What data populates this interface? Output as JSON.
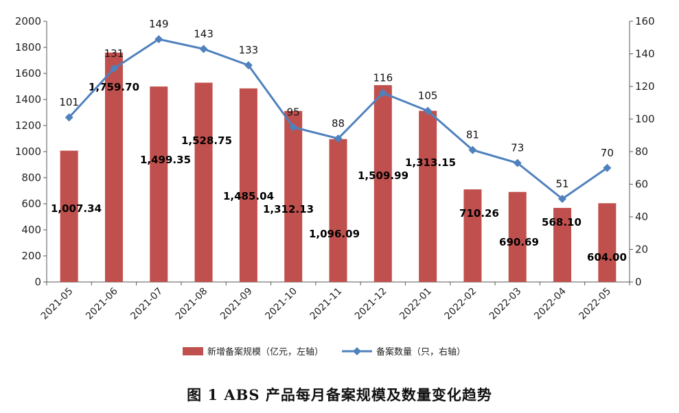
{
  "caption": "图 1  ABS 产品每月备案规模及数量变化趋势",
  "chart_data": {
    "type": "bar",
    "categories": [
      "2021-05",
      "2021-06",
      "2021-07",
      "2021-08",
      "2021-09",
      "2021-10",
      "2021-11",
      "2021-12",
      "2022-01",
      "2022-02",
      "2022-03",
      "2022-04",
      "2022-05"
    ],
    "series": [
      {
        "name": "新增备案规模（亿元，左轴）",
        "type": "bar",
        "axis": "left",
        "color": "#c0504d",
        "values": [
          1007.34,
          1759.7,
          1499.35,
          1528.75,
          1485.04,
          1312.13,
          1096.09,
          1509.99,
          1313.15,
          710.26,
          690.69,
          568.1,
          604.0
        ],
        "labels": [
          "1,007.34",
          "1,759.70",
          "1,499.35",
          "1,528.75",
          "1,485.04",
          "1,312.13",
          "1,096.09",
          "1,509.99",
          "1,313.15",
          "710.26",
          "690.69",
          "568.10",
          "604.00"
        ]
      },
      {
        "name": "备案数量（只，右轴）",
        "type": "line",
        "axis": "right",
        "color": "#4f81bd",
        "values": [
          101,
          131,
          149,
          143,
          133,
          95,
          88,
          116,
          105,
          81,
          73,
          51,
          70
        ],
        "labels": [
          "101",
          "131",
          "149",
          "143",
          "133",
          "95",
          "88",
          "116",
          "105",
          "81",
          "73",
          "51",
          "70"
        ]
      }
    ],
    "y_left": {
      "min": 0,
      "max": 2000,
      "step": 200,
      "ticks": [
        "0",
        "200",
        "400",
        "600",
        "800",
        "1000",
        "1200",
        "1400",
        "1600",
        "1800",
        "2000"
      ]
    },
    "y_right": {
      "min": 0,
      "max": 160,
      "step": 20,
      "ticks": [
        "0",
        "20",
        "40",
        "60",
        "80",
        "100",
        "120",
        "140",
        "160"
      ]
    },
    "legend_position": "bottom"
  }
}
